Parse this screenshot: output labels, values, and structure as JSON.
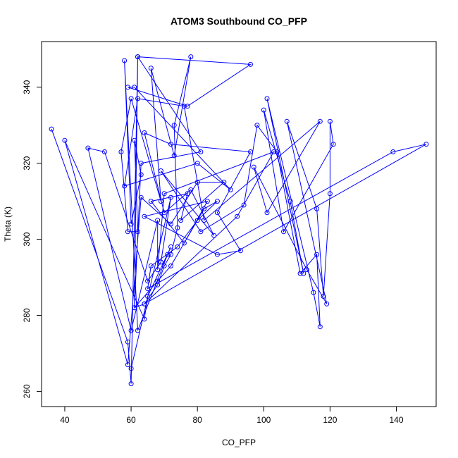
{
  "chart_data": {
    "type": "line",
    "title": "ATOM3 Southbound CO_PFP",
    "xlabel": "CO_PFP",
    "ylabel": "Theta (K)",
    "xlim": [
      33,
      152
    ],
    "ylim": [
      256,
      352
    ],
    "xticks": [
      40,
      60,
      80,
      100,
      120,
      140
    ],
    "yticks": [
      260,
      280,
      300,
      320,
      340
    ],
    "grid": false,
    "legend": "none",
    "markers": "open-circle",
    "color": "#0000ff",
    "series": [
      {
        "points": [
          [
            36,
            329
          ],
          [
            59,
            273
          ],
          [
            60,
            262
          ],
          [
            62,
            348
          ],
          [
            61,
            282
          ],
          [
            64,
            283
          ],
          [
            68,
            288
          ],
          [
            70,
            293
          ],
          [
            72,
            296
          ],
          [
            74,
            303
          ],
          [
            73,
            330
          ],
          [
            78,
            348
          ],
          [
            73,
            322
          ],
          [
            66,
            345
          ],
          [
            69,
            310
          ],
          [
            60,
            337
          ],
          [
            57,
            323
          ],
          [
            59,
            302
          ],
          [
            62,
            302
          ],
          [
            61,
            326
          ],
          [
            63,
            317
          ],
          [
            60,
            304
          ],
          [
            58,
            347
          ],
          [
            62,
            276
          ],
          [
            71,
            296
          ],
          [
            72,
            298
          ],
          [
            65,
            285
          ],
          [
            64,
            279
          ],
          [
            40,
            326
          ],
          [
            59,
            267
          ],
          [
            63,
            311
          ],
          [
            72,
            304
          ],
          [
            80,
            315
          ],
          [
            88,
            315
          ],
          [
            75,
            305
          ],
          [
            77,
            312
          ],
          [
            66,
            310
          ],
          [
            76,
            299
          ],
          [
            83,
            310
          ],
          [
            64,
            306
          ],
          [
            86,
            296
          ],
          [
            93,
            297
          ],
          [
            86,
            307
          ],
          [
            96,
            323
          ],
          [
            72,
            325
          ],
          [
            64,
            328
          ],
          [
            70,
            307
          ],
          [
            78,
            313
          ],
          [
            85,
            301
          ],
          [
            69,
            318
          ],
          [
            81,
            302
          ],
          [
            94,
            309
          ],
          [
            98,
            330
          ],
          [
            104,
            323
          ],
          [
            111,
            291
          ],
          [
            116,
            296
          ],
          [
            117,
            277
          ],
          [
            115,
            286
          ],
          [
            101,
            337
          ],
          [
            112,
            291
          ],
          [
            108,
            310
          ],
          [
            100,
            334
          ],
          [
            106,
            302
          ],
          [
            121,
            325
          ],
          [
            120,
            331
          ],
          [
            120,
            312
          ],
          [
            118,
            285
          ],
          [
            116,
            308
          ],
          [
            107,
            331
          ],
          [
            119,
            283
          ],
          [
            113,
            292
          ],
          [
            97,
            319
          ],
          [
            101,
            307
          ],
          [
            117,
            331
          ],
          [
            82,
            305
          ],
          [
            76,
            335
          ],
          [
            62,
            337
          ],
          [
            58,
            314
          ],
          [
            80,
            320
          ],
          [
            90,
            313
          ],
          [
            61,
            340
          ],
          [
            59,
            340
          ],
          [
            77,
            335
          ],
          [
            96,
            346
          ],
          [
            62,
            348
          ],
          [
            81,
            323
          ],
          [
            63,
            320
          ],
          [
            61,
            282
          ],
          [
            68,
            289
          ],
          [
            72,
            293
          ],
          [
            82,
            308
          ],
          [
            86,
            310
          ],
          [
            80,
            305
          ],
          [
            74,
            298
          ],
          [
            66,
            293
          ],
          [
            65,
            287
          ],
          [
            139,
            323
          ],
          [
            149,
            325
          ],
          [
            64,
            283
          ],
          [
            92,
            306
          ],
          [
            103,
            323
          ],
          [
            70,
            312
          ],
          [
            68,
            292
          ],
          [
            68,
            305
          ],
          [
            60,
            276
          ],
          [
            47,
            324
          ],
          [
            52,
            323
          ],
          [
            65,
            289
          ],
          [
            69,
            294
          ],
          [
            72,
            311
          ],
          [
            60,
            266
          ]
        ]
      }
    ]
  }
}
